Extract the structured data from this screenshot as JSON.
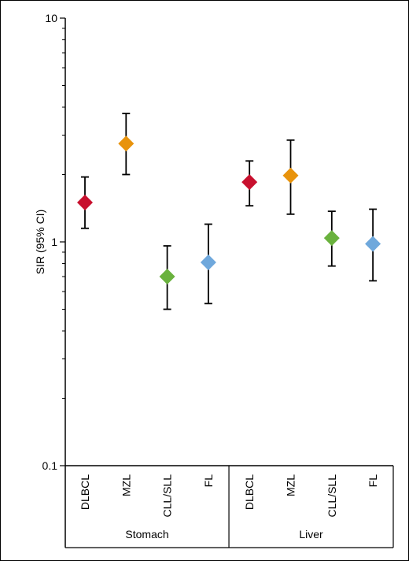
{
  "chart_data": {
    "type": "scatter",
    "ylabel": "SIR (95% CI)",
    "yscale": "log",
    "ylim": [
      0.1,
      10
    ],
    "yticks": [
      {
        "value": 10,
        "label": "10"
      },
      {
        "value": 1,
        "label": "1"
      },
      {
        "value": 0.1,
        "label": "0.1"
      }
    ],
    "groups": [
      {
        "label": "Stomach",
        "categories": [
          "DLBCL",
          "MZL",
          "CLL/SLL",
          "FL"
        ]
      },
      {
        "label": "Liver",
        "categories": [
          "DLBCL",
          "MZL",
          "CLL/SLL",
          "FL"
        ]
      }
    ],
    "points": [
      {
        "group": "Stomach",
        "category": "DLBCL",
        "sir": 1.5,
        "lower": 1.15,
        "upper": 1.95,
        "color": "#c8102e"
      },
      {
        "group": "Stomach",
        "category": "MZL",
        "sir": 2.75,
        "lower": 2.0,
        "upper": 3.75,
        "color": "#e8930c"
      },
      {
        "group": "Stomach",
        "category": "CLL/SLL",
        "sir": 0.7,
        "lower": 0.5,
        "upper": 0.96,
        "color": "#6ab23e"
      },
      {
        "group": "Stomach",
        "category": "FL",
        "sir": 0.81,
        "lower": 0.53,
        "upper": 1.2,
        "color": "#6fa8dc"
      },
      {
        "group": "Liver",
        "category": "DLBCL",
        "sir": 1.85,
        "lower": 1.45,
        "upper": 2.3,
        "color": "#c8102e"
      },
      {
        "group": "Liver",
        "category": "MZL",
        "sir": 1.98,
        "lower": 1.33,
        "upper": 2.85,
        "color": "#e8930c"
      },
      {
        "group": "Liver",
        "category": "CLL/SLL",
        "sir": 1.04,
        "lower": 0.78,
        "upper": 1.37,
        "color": "#6ab23e"
      },
      {
        "group": "Liver",
        "category": "FL",
        "sir": 0.98,
        "lower": 0.67,
        "upper": 1.4,
        "color": "#6fa8dc"
      }
    ],
    "grid": false,
    "legend": "none"
  }
}
